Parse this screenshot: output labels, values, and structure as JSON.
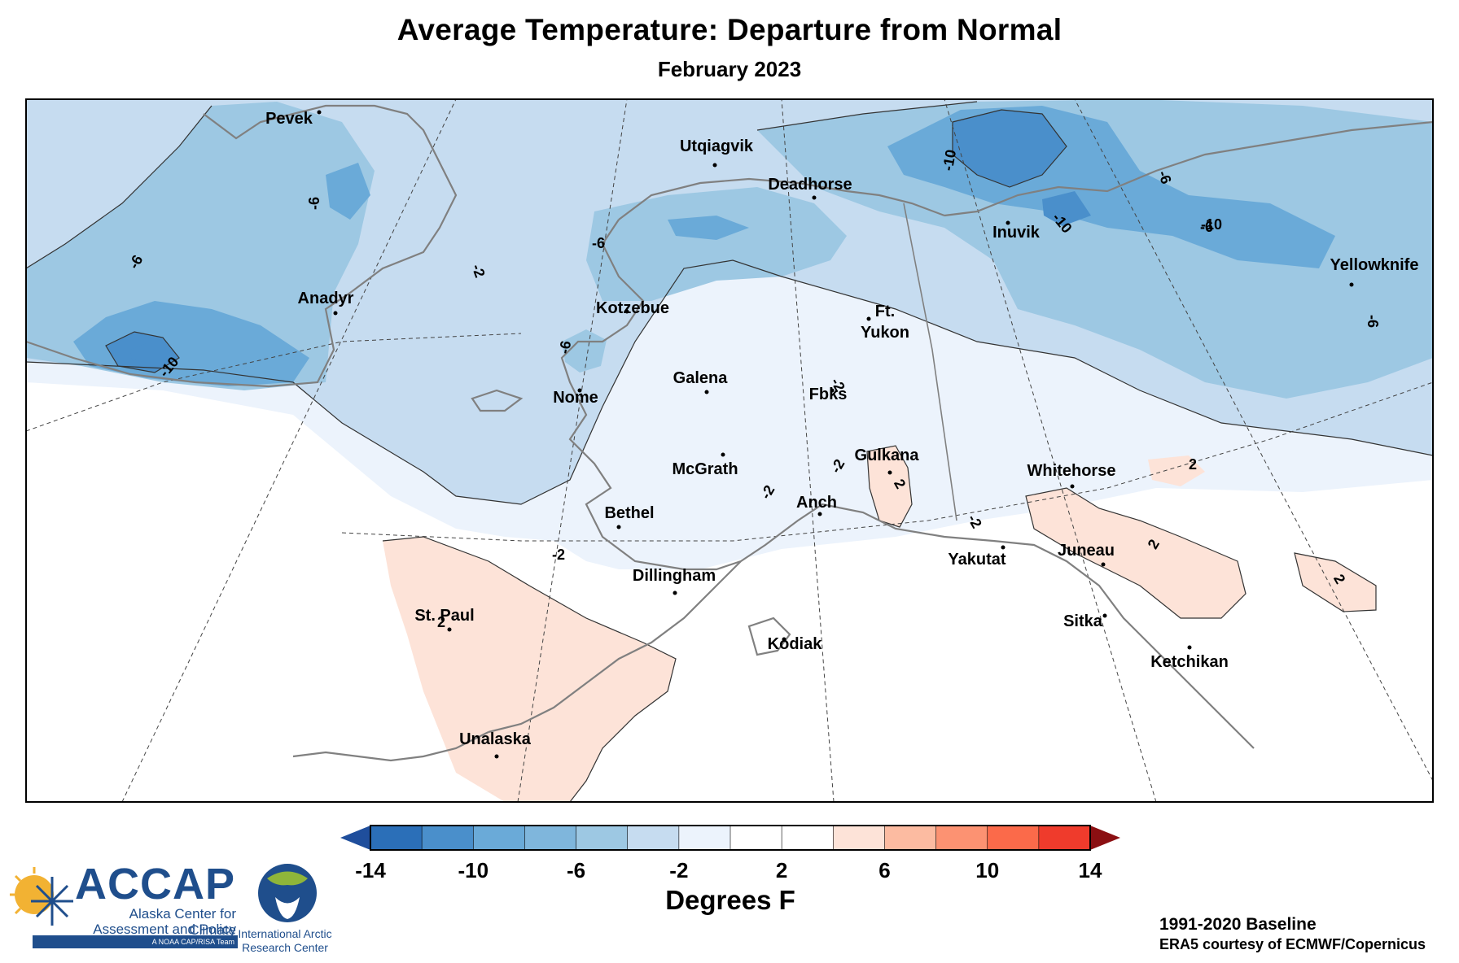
{
  "header": {
    "title": "Average Temperature: Departure from Normal",
    "subtitle": "February 2023"
  },
  "colors": {
    "b14": "#2b6fb8",
    "b10": "#4a8fcb",
    "b8": "#6aaad8",
    "b6": "#9dc8e3",
    "b4": "#c6dcf0",
    "b2": "#ecf3fc",
    "n": "#ffffff",
    "r2": "#fde3d8",
    "r4": "#fcbba1",
    "r6": "#fc9272",
    "r8": "#fb6a4a",
    "r10": "#ef3b2c",
    "r12": "#cb181d",
    "coast": "#808080"
  },
  "cities": [
    {
      "name": "Pevek"
    },
    {
      "name": "Anadyr"
    },
    {
      "name": "Utqiagvik"
    },
    {
      "name": "Deadhorse"
    },
    {
      "name": "Inuvik"
    },
    {
      "name": "Yellowknife"
    },
    {
      "name": "Kotzebue"
    },
    {
      "name": "Ft."
    },
    {
      "name": "Yukon"
    },
    {
      "name": "Nome"
    },
    {
      "name": "Galena"
    },
    {
      "name": "Fbks"
    },
    {
      "name": "Gulkana"
    },
    {
      "name": "McGrath"
    },
    {
      "name": "Whitehorse"
    },
    {
      "name": "Bethel"
    },
    {
      "name": "Anch"
    },
    {
      "name": "Yakutat"
    },
    {
      "name": "Juneau"
    },
    {
      "name": "Dillingham"
    },
    {
      "name": "St. Paul"
    },
    {
      "name": "Sitka"
    },
    {
      "name": "Kodiak"
    },
    {
      "name": "Ketchikan"
    },
    {
      "name": "Unalaska"
    }
  ],
  "contour_labels": [
    "-6",
    "-6",
    "-10",
    "-6",
    "-2",
    "-6",
    "-6",
    "-10",
    "-10",
    "-6",
    "-10",
    "-6",
    "-2",
    "-2",
    "-2",
    "-2",
    "-2",
    "2",
    "2",
    "2",
    "2",
    "2"
  ],
  "colorbar": {
    "ticks": [
      "-14",
      "-10",
      "-6",
      "-2",
      "2",
      "6",
      "10",
      "14"
    ],
    "title": "Degrees F"
  },
  "footer": {
    "baseline": "1991-2020 Baseline",
    "credit": "ERA5 courtesy of ECMWF/Copernicus",
    "accap": {
      "name": "ACCAP",
      "line1": "Alaska Center for Climate",
      "line2": "Assessment and Policy",
      "tag": "A NOAA CAP/RISA Team"
    },
    "iarc": {
      "line1": "International Arctic",
      "line2": "Research Center"
    }
  }
}
